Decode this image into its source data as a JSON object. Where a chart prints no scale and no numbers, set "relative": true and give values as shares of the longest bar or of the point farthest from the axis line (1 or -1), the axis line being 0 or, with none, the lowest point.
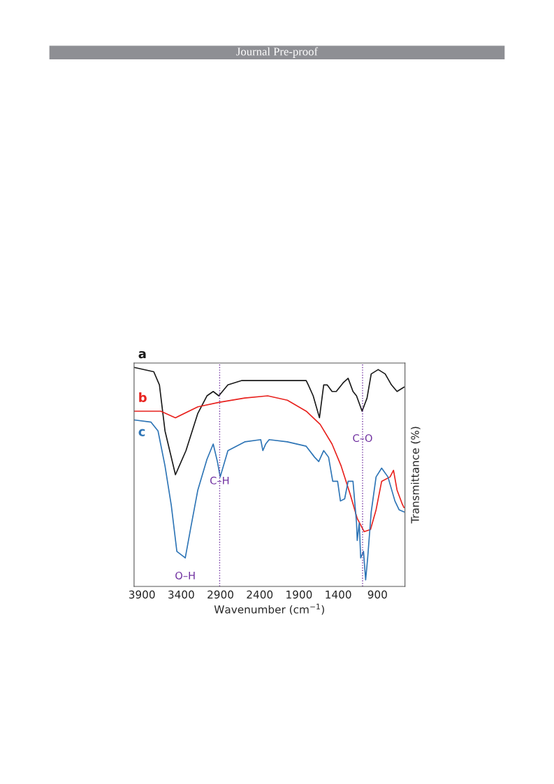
{
  "chart_data": {
    "type": "line",
    "xlabel": "Wavenumber (cm$^{−1}$)",
    "ylabel": "Transmittance (%)",
    "relative": true,
    "tick_labels": "x",
    "grid": false,
    "marker": "none",
    "line_style": "solid",
    "xlim": [
      4000,
      550
    ],
    "xticks": [
      3900,
      3400,
      2900,
      2400,
      1900,
      1400,
      900
    ],
    "series": [
      {
        "name": "a",
        "color": "#1a1a1a",
        "x": [
          4000,
          3749,
          3677,
          3606,
          3473,
          3339,
          3188,
          3072,
          2992,
          2921,
          2805,
          2627,
          2342,
          1808,
          1781,
          1719,
          1639,
          1585,
          1541,
          1479,
          1425,
          1336,
          1274,
          1212,
          1167,
          1096,
          1033,
          980,
          891,
          802,
          722,
          651,
          562
        ],
        "values": [
          1.0,
          0.98,
          0.92,
          0.71,
          0.51,
          0.62,
          0.79,
          0.87,
          0.89,
          0.87,
          0.92,
          0.94,
          0.94,
          0.94,
          0.92,
          0.87,
          0.77,
          0.92,
          0.92,
          0.89,
          0.89,
          0.93,
          0.95,
          0.89,
          0.87,
          0.8,
          0.86,
          0.97,
          0.99,
          0.97,
          0.92,
          0.89,
          0.91
        ]
      },
      {
        "name": "b",
        "color": "#e8231f",
        "x": [
          4000,
          3660,
          3473,
          3188,
          2921,
          2591,
          2298,
          2048,
          1808,
          1630,
          1479,
          1363,
          1247,
          1158,
          1069,
          989,
          918,
          847,
          740,
          696,
          651,
          589,
          562
        ],
        "values": [
          0.8,
          0.8,
          0.77,
          0.82,
          0.84,
          0.86,
          0.87,
          0.85,
          0.8,
          0.74,
          0.65,
          0.55,
          0.42,
          0.31,
          0.25,
          0.26,
          0.35,
          0.48,
          0.5,
          0.53,
          0.44,
          0.38,
          0.36
        ]
      },
      {
        "name": "c",
        "color": "#2e75b6",
        "x": [
          4000,
          3784,
          3695,
          3606,
          3526,
          3455,
          3348,
          3277,
          3188,
          3072,
          2992,
          2939,
          2903,
          2805,
          2591,
          2387,
          2360,
          2324,
          2280,
          2048,
          1808,
          1701,
          1648,
          1585,
          1523,
          1470,
          1408,
          1372,
          1318,
          1274,
          1212,
          1167,
          1158,
          1132,
          1114,
          1078,
          1051,
          1025,
          980,
          918,
          847,
          767,
          678,
          625,
          562
        ],
        "values": [
          0.76,
          0.75,
          0.71,
          0.55,
          0.37,
          0.16,
          0.13,
          0.27,
          0.44,
          0.58,
          0.65,
          0.57,
          0.5,
          0.62,
          0.66,
          0.67,
          0.62,
          0.65,
          0.67,
          0.66,
          0.64,
          0.59,
          0.57,
          0.62,
          0.59,
          0.48,
          0.48,
          0.39,
          0.4,
          0.48,
          0.48,
          0.29,
          0.21,
          0.29,
          0.13,
          0.16,
          0.03,
          0.13,
          0.34,
          0.5,
          0.54,
          0.5,
          0.39,
          0.35,
          0.34
        ]
      }
    ],
    "ref_lines": [
      {
        "axis": "x",
        "value": 2910,
        "label": "C–H",
        "color": "#7030a0",
        "line_style": "dotted"
      },
      {
        "axis": "x",
        "value": 1090,
        "label": "C–O",
        "color": "#7030a0",
        "line_style": "dotted"
      }
    ],
    "annotations": [
      "Journal Pre-proof",
      {
        "text": "O–H",
        "x": 3348,
        "y": 0.13
      }
    ]
  }
}
